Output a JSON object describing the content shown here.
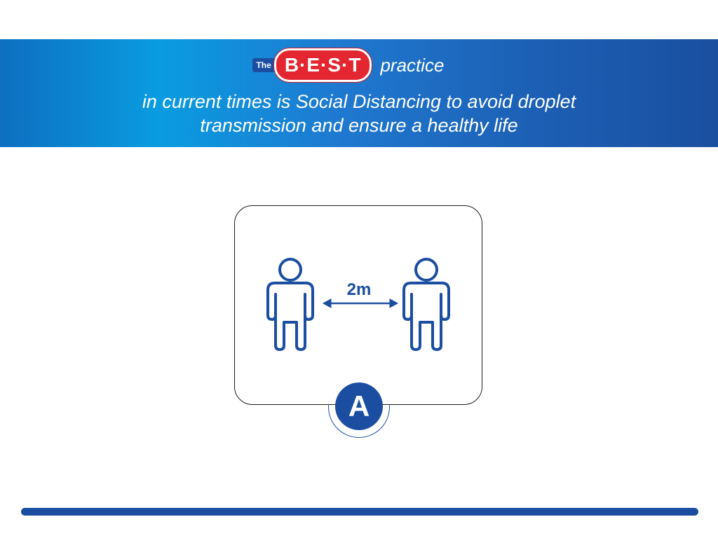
{
  "header": {
    "logo_prefix": "The",
    "logo_main": "B·E·S·T",
    "logo_suffix": "practice",
    "tagline_line1": "in current times is Social Distancing to avoid droplet",
    "tagline_line2": "transmission and ensure a healthy life"
  },
  "illustration": {
    "distance_label": "2m",
    "badge_letter": "A"
  },
  "colors": {
    "brand_blue": "#1b4ea1",
    "banner_light": "#0a9ce0",
    "logo_red": "#e3262f"
  }
}
